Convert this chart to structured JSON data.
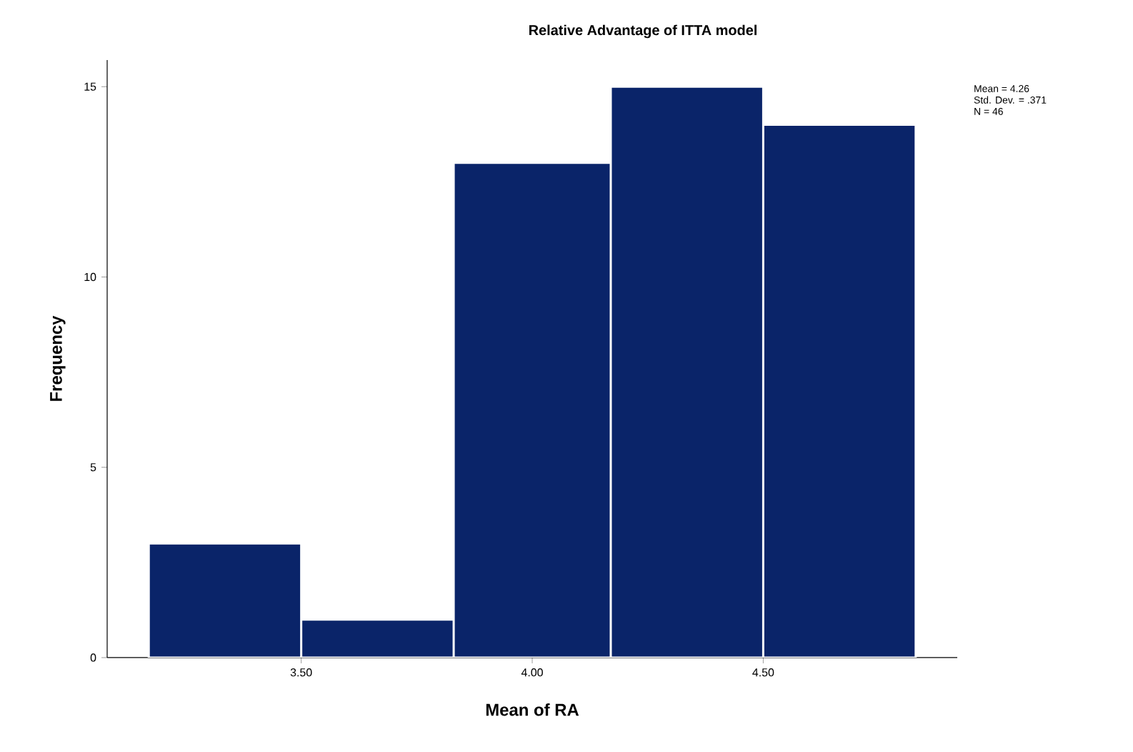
{
  "chart_data": {
    "type": "histogram",
    "title": "Relative Advantage of ITTA model",
    "xlabel": "Mean of RA",
    "ylabel": "Frequency",
    "bins": [
      3.17,
      3.5,
      3.83,
      4.17,
      4.5,
      4.83
    ],
    "values": [
      3,
      1,
      13,
      15,
      14
    ],
    "color": "#0a2469",
    "xlim": [
      3.08,
      4.92
    ],
    "ylim": [
      0,
      15.7
    ],
    "xticks": [
      {
        "value": 3.5,
        "label": "3.50"
      },
      {
        "value": 4.0,
        "label": "4.00"
      },
      {
        "value": 4.5,
        "label": "4.50"
      }
    ],
    "yticks": [
      0,
      5,
      10,
      15
    ],
    "annotations": [
      "Mean = 4.26",
      "Std. Dev. = .371",
      "N = 46"
    ]
  }
}
